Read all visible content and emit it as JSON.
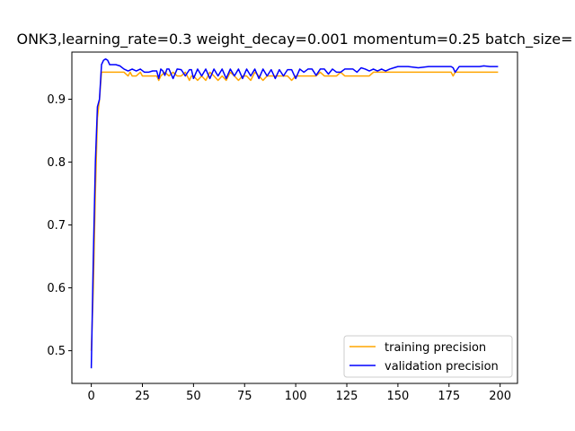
{
  "chart_data": {
    "type": "line",
    "title": "ONK3,learning_rate=0.3  weight_decay=0.001  momentum=0.25  batch_size=",
    "xlabel": "",
    "ylabel": "",
    "xlim": [
      -9.5,
      208.5
    ],
    "ylim": [
      0.448,
      0.975
    ],
    "xticks": [
      0,
      25,
      50,
      75,
      100,
      125,
      150,
      175,
      200
    ],
    "yticks": [
      0.5,
      0.6,
      0.7,
      0.8,
      0.9
    ],
    "ytick_labels": [
      "0.5",
      "0.6",
      "0.7",
      "0.8",
      "0.9"
    ],
    "grid": false,
    "legend_position": "lower-right",
    "series": [
      {
        "name": "training precision",
        "color": "#FFA500",
        "x": [
          0,
          1,
          2,
          3,
          4,
          5,
          6,
          8,
          10,
          12,
          14,
          16,
          18,
          19,
          20,
          22,
          24,
          25,
          26,
          28,
          30,
          32,
          33,
          34,
          36,
          38,
          40,
          42,
          44,
          46,
          48,
          49,
          50,
          52,
          54,
          56,
          58,
          60,
          62,
          64,
          66,
          68,
          70,
          72,
          74,
          76,
          78,
          80,
          82,
          84,
          86,
          88,
          90,
          92,
          94,
          96,
          98,
          100,
          102,
          104,
          106,
          108,
          110,
          112,
          114,
          116,
          118,
          120,
          122,
          124,
          126,
          128,
          130,
          132,
          134,
          136,
          138,
          140,
          142,
          150,
          160,
          170,
          176,
          177,
          178,
          180,
          190,
          199
        ],
        "y": [
          0.5,
          0.6,
          0.75,
          0.87,
          0.9,
          0.943,
          0.943,
          0.943,
          0.943,
          0.943,
          0.943,
          0.943,
          0.937,
          0.943,
          0.937,
          0.937,
          0.943,
          0.937,
          0.937,
          0.937,
          0.937,
          0.937,
          0.93,
          0.937,
          0.943,
          0.937,
          0.943,
          0.937,
          0.937,
          0.943,
          0.93,
          0.937,
          0.937,
          0.93,
          0.937,
          0.93,
          0.943,
          0.937,
          0.93,
          0.937,
          0.93,
          0.943,
          0.937,
          0.93,
          0.937,
          0.937,
          0.93,
          0.943,
          0.937,
          0.93,
          0.937,
          0.937,
          0.937,
          0.937,
          0.937,
          0.937,
          0.93,
          0.937,
          0.937,
          0.937,
          0.937,
          0.937,
          0.937,
          0.943,
          0.937,
          0.937,
          0.937,
          0.937,
          0.943,
          0.937,
          0.937,
          0.937,
          0.937,
          0.937,
          0.937,
          0.937,
          0.943,
          0.943,
          0.943,
          0.943,
          0.943,
          0.943,
          0.943,
          0.937,
          0.943,
          0.943,
          0.943,
          0.943
        ]
      },
      {
        "name": "validation precision",
        "color": "#0000FF",
        "x": [
          0,
          1,
          2,
          3,
          4,
          5,
          6,
          7,
          8,
          9,
          10,
          12,
          14,
          16,
          18,
          20,
          22,
          24,
          26,
          28,
          30,
          32,
          33,
          34,
          35,
          36,
          37,
          38,
          40,
          42,
          44,
          46,
          48,
          49,
          50,
          52,
          54,
          56,
          58,
          60,
          62,
          64,
          66,
          68,
          70,
          72,
          74,
          76,
          78,
          80,
          82,
          84,
          86,
          88,
          90,
          92,
          94,
          96,
          98,
          100,
          102,
          104,
          106,
          108,
          110,
          112,
          114,
          116,
          118,
          120,
          122,
          124,
          126,
          128,
          130,
          132,
          134,
          136,
          138,
          140,
          142,
          144,
          146,
          148,
          150,
          155,
          160,
          165,
          170,
          175,
          176,
          177,
          178,
          180,
          185,
          190,
          192,
          195,
          199
        ],
        "y": [
          0.472,
          0.65,
          0.8,
          0.888,
          0.9,
          0.955,
          0.962,
          0.964,
          0.962,
          0.955,
          0.955,
          0.955,
          0.953,
          0.948,
          0.945,
          0.948,
          0.945,
          0.948,
          0.943,
          0.943,
          0.945,
          0.945,
          0.933,
          0.948,
          0.945,
          0.938,
          0.948,
          0.948,
          0.933,
          0.948,
          0.947,
          0.937,
          0.947,
          0.947,
          0.933,
          0.948,
          0.937,
          0.948,
          0.933,
          0.948,
          0.937,
          0.948,
          0.933,
          0.948,
          0.937,
          0.948,
          0.933,
          0.948,
          0.937,
          0.948,
          0.933,
          0.948,
          0.937,
          0.947,
          0.933,
          0.947,
          0.937,
          0.947,
          0.947,
          0.933,
          0.948,
          0.943,
          0.948,
          0.948,
          0.938,
          0.948,
          0.948,
          0.94,
          0.948,
          0.943,
          0.943,
          0.948,
          0.948,
          0.948,
          0.943,
          0.95,
          0.948,
          0.945,
          0.948,
          0.945,
          0.948,
          0.945,
          0.948,
          0.95,
          0.952,
          0.952,
          0.95,
          0.952,
          0.952,
          0.952,
          0.952,
          0.95,
          0.943,
          0.952,
          0.952,
          0.952,
          0.953,
          0.952,
          0.952
        ]
      }
    ]
  }
}
